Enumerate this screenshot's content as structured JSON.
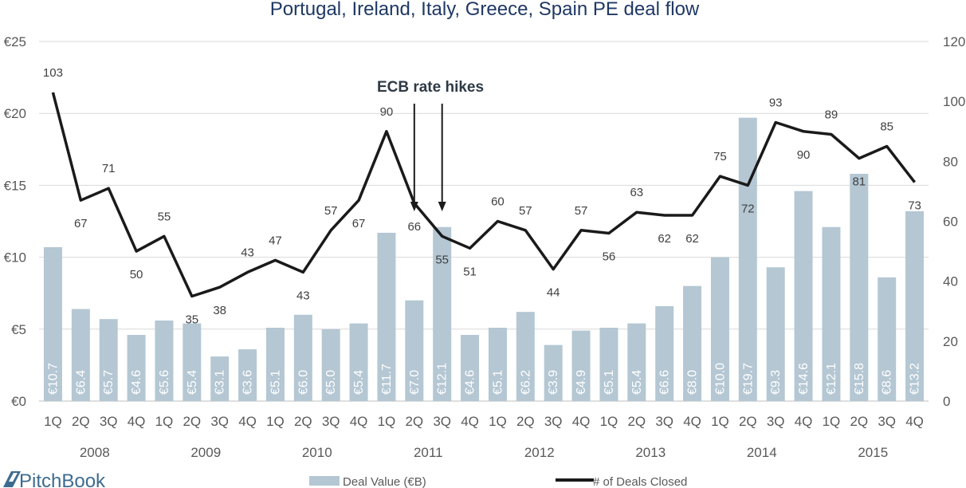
{
  "chart_data": {
    "type": "bar",
    "title": "Portugal, Ireland, Italy, Greece, Spain PE deal flow",
    "quarters": [
      "1Q",
      "2Q",
      "3Q",
      "4Q",
      "1Q",
      "2Q",
      "3Q",
      "4Q",
      "1Q",
      "2Q",
      "3Q",
      "4Q",
      "1Q",
      "2Q",
      "3Q",
      "4Q",
      "1Q",
      "2Q",
      "3Q",
      "4Q",
      "1Q",
      "2Q",
      "3Q",
      "4Q",
      "1Q",
      "2Q",
      "3Q",
      "4Q",
      "1Q",
      "2Q",
      "3Q",
      "4Q"
    ],
    "years": [
      "2008",
      "2009",
      "2010",
      "2011",
      "2012",
      "2013",
      "2014",
      "2015"
    ],
    "series": [
      {
        "name": "Deal Value (€B)",
        "type": "bar",
        "axis": "left",
        "color": "#b4c7d3",
        "values": [
          10.7,
          6.4,
          5.7,
          4.6,
          5.6,
          5.4,
          3.1,
          3.6,
          5.1,
          6.0,
          5.0,
          5.4,
          11.7,
          7.0,
          12.1,
          4.6,
          5.1,
          6.2,
          3.9,
          4.9,
          5.1,
          5.4,
          6.6,
          8.0,
          10.0,
          19.7,
          9.3,
          14.6,
          12.1,
          15.8,
          8.6,
          13.2
        ],
        "labels": [
          "€10.7",
          "€6.4",
          "€5.7",
          "€4.6",
          "€5.6",
          "€5.4",
          "€3.1",
          "€3.6",
          "€5.1",
          "€6.0",
          "€5.0",
          "€5.4",
          "€11.7",
          "€7.0",
          "€12.1",
          "€4.6",
          "€5.1",
          "€6.2",
          "€3.9",
          "€4.9",
          "€5.1",
          "€5.4",
          "€6.6",
          "€8.0",
          "€10.0",
          "€19.7",
          "€9.3",
          "€14.6",
          "€12.1",
          "€15.8",
          "€8.6",
          "€13.2"
        ]
      },
      {
        "name": "# of Deals Closed",
        "type": "line",
        "axis": "right",
        "color": "#1a1a1a",
        "values": [
          103,
          67,
          71,
          50,
          55,
          35,
          38,
          43,
          47,
          43,
          57,
          67,
          90,
          66,
          55,
          51,
          60,
          57,
          44,
          57,
          56,
          63,
          62,
          62,
          75,
          72,
          93,
          90,
          89,
          81,
          85,
          73
        ]
      }
    ],
    "y_left": {
      "min": 0,
      "max": 25,
      "ticks": [
        "€0",
        "€5",
        "€10",
        "€15",
        "€20",
        "€25"
      ]
    },
    "y_right": {
      "min": 0,
      "max": 120,
      "ticks": [
        "0",
        "20",
        "40",
        "60",
        "80",
        "100",
        "120"
      ]
    },
    "grid": true,
    "legend_position": "bottom",
    "annotation": {
      "text": "ECB rate hikes",
      "arrows_at_quarter_index": [
        13,
        14
      ]
    }
  },
  "branding": {
    "logo_text": "PitchBook",
    "logo_color": "#3d6b8f"
  }
}
